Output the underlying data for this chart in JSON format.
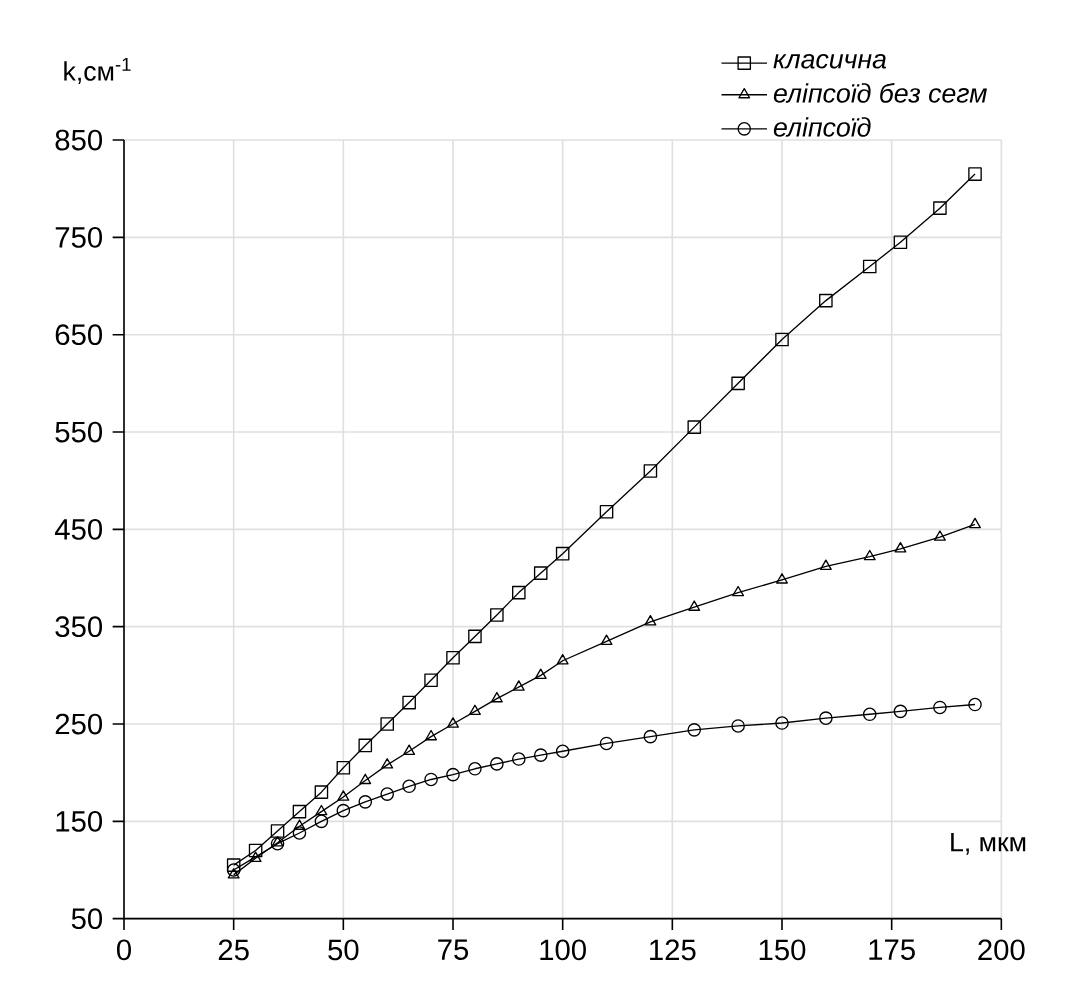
{
  "chart_data": {
    "type": "line",
    "xlabel": "L, мкм",
    "ylabel": "k,см$^{-1}$",
    "xlim": [
      0,
      200
    ],
    "ylim": [
      50,
      850
    ],
    "xticks": [
      0,
      25,
      50,
      75,
      100,
      125,
      150,
      175,
      200
    ],
    "yticks": [
      50,
      150,
      250,
      350,
      450,
      550,
      650,
      750,
      850
    ],
    "grid": true,
    "legend": "top right",
    "line_style": "solid",
    "series": [
      {
        "name": "класична",
        "color": "#000000",
        "marker": "square",
        "x": [
          25,
          30,
          35,
          40,
          45,
          50,
          55,
          60,
          65,
          70,
          75,
          80,
          85,
          90,
          95,
          100,
          110,
          120,
          130,
          140,
          150,
          160,
          170,
          177,
          186,
          194
        ],
        "values": [
          105,
          120,
          140,
          160,
          180,
          205,
          228,
          250,
          272,
          295,
          318,
          340,
          362,
          385,
          405,
          425,
          468,
          510,
          555,
          600,
          645,
          685,
          720,
          745,
          780,
          815
        ]
      },
      {
        "name": "еліпсоїд без сегм",
        "color": "#000000",
        "marker": "triangle",
        "x": [
          25,
          30,
          35,
          40,
          45,
          50,
          55,
          60,
          65,
          70,
          75,
          80,
          85,
          90,
          95,
          100,
          110,
          120,
          130,
          140,
          150,
          160,
          170,
          177,
          186,
          194
        ],
        "values": [
          95,
          112,
          128,
          145,
          160,
          175,
          192,
          208,
          222,
          237,
          250,
          263,
          276,
          288,
          300,
          315,
          335,
          355,
          370,
          385,
          398,
          412,
          422,
          430,
          442,
          455
        ]
      },
      {
        "name": "еліпсоїд",
        "color": "#000000",
        "marker": "circle",
        "x": [
          25,
          35,
          40,
          45,
          50,
          55,
          60,
          65,
          70,
          75,
          80,
          85,
          90,
          95,
          100,
          110,
          120,
          130,
          140,
          150,
          160,
          170,
          177,
          186,
          194
        ],
        "values": [
          100,
          127,
          138,
          150,
          161,
          170,
          178,
          186,
          193,
          198,
          204,
          209,
          214,
          218,
          222,
          230,
          237,
          244,
          248,
          251,
          256,
          260,
          263,
          267,
          270
        ]
      }
    ]
  }
}
